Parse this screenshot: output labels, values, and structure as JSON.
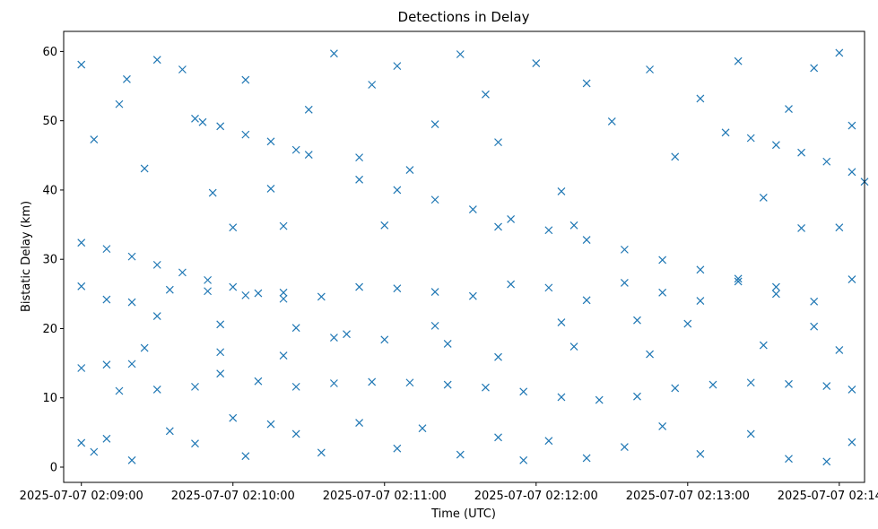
{
  "chart_data": {
    "type": "scatter",
    "title": "Detections in Delay",
    "xlabel": "Time (UTC)",
    "ylabel": "Bistatic Delay (km)",
    "marker": "x",
    "color": "#1f77b4",
    "grid": false,
    "x_axis": {
      "type": "datetime",
      "range": [
        "2025-07-07 02:08:53",
        "2025-07-07 02:14:10"
      ],
      "ticks": [
        "2025-07-07 02:09:00",
        "2025-07-07 02:10:00",
        "2025-07-07 02:11:00",
        "2025-07-07 02:12:00",
        "2025-07-07 02:13:00",
        "2025-07-07 02:14:00"
      ],
      "tick_labels": [
        "2025-07-07 02:09:00",
        "2025-07-07 02:10:00",
        "2025-07-07 02:11:00",
        "2025-07-07 02:12:00",
        "2025-07-07 02:13:00",
        "2025-07-07 02:14:00"
      ]
    },
    "y_axis": {
      "range": [
        -2.2,
        62.9
      ],
      "ticks": [
        0,
        10,
        20,
        30,
        40,
        50,
        60
      ],
      "tick_labels": [
        "0",
        "10",
        "20",
        "30",
        "40",
        "50",
        "60"
      ]
    },
    "series": [
      {
        "points": [
          [
            "2025-07-07 02:09:00",
            32.4
          ],
          [
            "2025-07-07 02:09:10",
            31.5
          ],
          [
            "2025-07-07 02:09:20",
            30.4
          ],
          [
            "2025-07-07 02:09:30",
            29.2
          ],
          [
            "2025-07-07 02:09:40",
            28.1
          ],
          [
            "2025-07-07 02:09:50",
            27.0
          ],
          [
            "2025-07-07 02:10:00",
            26.0
          ],
          [
            "2025-07-07 02:10:10",
            25.1
          ],
          [
            "2025-07-07 02:10:20",
            24.3
          ],
          [
            "2025-07-07 02:09:45",
            50.3
          ],
          [
            "2025-07-07 02:09:55",
            49.2
          ],
          [
            "2025-07-07 02:10:05",
            48.0
          ],
          [
            "2025-07-07 02:10:15",
            47.0
          ],
          [
            "2025-07-07 02:10:25",
            45.8
          ],
          [
            "2025-07-07 02:10:30",
            45.1
          ],
          [
            "2025-07-07 02:10:50",
            41.5
          ],
          [
            "2025-07-07 02:11:05",
            40.0
          ],
          [
            "2025-07-07 02:11:20",
            38.6
          ],
          [
            "2025-07-07 02:11:35",
            37.2
          ],
          [
            "2025-07-07 02:11:50",
            35.8
          ],
          [
            "2025-07-07 02:12:05",
            34.2
          ],
          [
            "2025-07-07 02:12:20",
            32.8
          ],
          [
            "2025-07-07 02:12:35",
            31.4
          ],
          [
            "2025-07-07 02:12:50",
            29.9
          ],
          [
            "2025-07-07 02:13:05",
            28.5
          ],
          [
            "2025-07-07 02:13:20",
            27.2
          ],
          [
            "2025-07-07 02:13:35",
            26.0
          ],
          [
            "2025-07-07 02:13:15",
            48.3
          ],
          [
            "2025-07-07 02:13:25",
            47.5
          ],
          [
            "2025-07-07 02:13:35",
            46.5
          ],
          [
            "2025-07-07 02:13:45",
            45.4
          ],
          [
            "2025-07-07 02:13:55",
            44.1
          ],
          [
            "2025-07-07 02:14:05",
            42.6
          ],
          [
            "2025-07-07 02:14:10",
            41.2
          ],
          [
            "2025-07-07 02:09:00",
            14.3
          ],
          [
            "2025-07-07 02:09:10",
            14.8
          ],
          [
            "2025-07-07 02:09:20",
            14.9
          ],
          [
            "2025-07-07 02:09:15",
            11.0
          ],
          [
            "2025-07-07 02:09:30",
            11.2
          ],
          [
            "2025-07-07 02:09:45",
            11.6
          ],
          [
            "2025-07-07 02:09:55",
            13.5
          ],
          [
            "2025-07-07 02:10:10",
            12.4
          ],
          [
            "2025-07-07 02:10:25",
            11.6
          ],
          [
            "2025-07-07 02:10:40",
            12.1
          ],
          [
            "2025-07-07 02:10:55",
            12.3
          ],
          [
            "2025-07-07 02:11:10",
            12.2
          ],
          [
            "2025-07-07 02:11:25",
            11.9
          ],
          [
            "2025-07-07 02:11:40",
            11.5
          ],
          [
            "2025-07-07 02:11:55",
            10.9
          ],
          [
            "2025-07-07 02:12:10",
            10.1
          ],
          [
            "2025-07-07 02:12:25",
            9.7
          ],
          [
            "2025-07-07 02:12:40",
            10.2
          ],
          [
            "2025-07-07 02:12:55",
            11.4
          ],
          [
            "2025-07-07 02:13:10",
            11.9
          ],
          [
            "2025-07-07 02:13:25",
            12.2
          ],
          [
            "2025-07-07 02:13:40",
            12.0
          ],
          [
            "2025-07-07 02:13:55",
            11.7
          ],
          [
            "2025-07-07 02:14:05",
            11.2
          ],
          [
            "2025-07-07 02:09:00",
            26.1
          ],
          [
            "2025-07-07 02:09:10",
            24.2
          ],
          [
            "2025-07-07 02:09:20",
            23.8
          ],
          [
            "2025-07-07 02:09:35",
            25.6
          ],
          [
            "2025-07-07 02:09:50",
            25.4
          ],
          [
            "2025-07-07 02:10:05",
            24.8
          ],
          [
            "2025-07-07 02:10:20",
            25.2
          ],
          [
            "2025-07-07 02:10:35",
            24.6
          ],
          [
            "2025-07-07 02:10:50",
            26.0
          ],
          [
            "2025-07-07 02:11:05",
            25.8
          ],
          [
            "2025-07-07 02:11:20",
            25.3
          ],
          [
            "2025-07-07 02:11:35",
            24.7
          ],
          [
            "2025-07-07 02:11:50",
            26.4
          ],
          [
            "2025-07-07 02:12:05",
            25.9
          ],
          [
            "2025-07-07 02:12:20",
            24.1
          ],
          [
            "2025-07-07 02:12:35",
            26.6
          ],
          [
            "2025-07-07 02:12:50",
            25.2
          ],
          [
            "2025-07-07 02:13:05",
            24.0
          ],
          [
            "2025-07-07 02:13:20",
            26.8
          ],
          [
            "2025-07-07 02:13:35",
            25.0
          ],
          [
            "2025-07-07 02:13:50",
            23.9
          ],
          [
            "2025-07-07 02:14:05",
            27.1
          ],
          [
            "2025-07-07 02:09:30",
            21.8
          ],
          [
            "2025-07-07 02:09:55",
            20.6
          ],
          [
            "2025-07-07 02:10:25",
            20.1
          ],
          [
            "2025-07-07 02:10:40",
            18.7
          ],
          [
            "2025-07-07 02:11:00",
            18.4
          ],
          [
            "2025-07-07 02:11:20",
            20.4
          ],
          [
            "2025-07-07 02:12:10",
            20.9
          ],
          [
            "2025-07-07 02:12:40",
            21.2
          ],
          [
            "2025-07-07 02:13:00",
            20.7
          ],
          [
            "2025-07-07 02:13:50",
            20.3
          ],
          [
            "2025-07-07 02:10:00",
            34.6
          ],
          [
            "2025-07-07 02:10:20",
            34.8
          ],
          [
            "2025-07-07 02:11:00",
            34.9
          ],
          [
            "2025-07-07 02:11:45",
            34.7
          ],
          [
            "2025-07-07 02:12:15",
            34.9
          ],
          [
            "2025-07-07 02:13:45",
            34.5
          ],
          [
            "2025-07-07 02:14:00",
            34.6
          ],
          [
            "2025-07-07 02:09:00",
            58.1
          ],
          [
            "2025-07-07 02:09:05",
            47.3
          ],
          [
            "2025-07-07 02:09:15",
            52.4
          ],
          [
            "2025-07-07 02:09:18",
            56.0
          ],
          [
            "2025-07-07 02:09:25",
            43.1
          ],
          [
            "2025-07-07 02:09:30",
            58.8
          ],
          [
            "2025-07-07 02:09:40",
            57.4
          ],
          [
            "2025-07-07 02:09:48",
            49.8
          ],
          [
            "2025-07-07 02:09:52",
            39.6
          ],
          [
            "2025-07-07 02:10:05",
            55.9
          ],
          [
            "2025-07-07 02:10:15",
            40.2
          ],
          [
            "2025-07-07 02:10:30",
            51.6
          ],
          [
            "2025-07-07 02:10:40",
            59.7
          ],
          [
            "2025-07-07 02:10:50",
            44.7
          ],
          [
            "2025-07-07 02:10:55",
            55.2
          ],
          [
            "2025-07-07 02:11:05",
            57.9
          ],
          [
            "2025-07-07 02:11:10",
            42.9
          ],
          [
            "2025-07-07 02:11:20",
            49.5
          ],
          [
            "2025-07-07 02:11:30",
            59.6
          ],
          [
            "2025-07-07 02:11:40",
            53.8
          ],
          [
            "2025-07-07 02:11:45",
            46.9
          ],
          [
            "2025-07-07 02:12:00",
            58.3
          ],
          [
            "2025-07-07 02:12:10",
            39.8
          ],
          [
            "2025-07-07 02:12:20",
            55.4
          ],
          [
            "2025-07-07 02:12:30",
            49.9
          ],
          [
            "2025-07-07 02:12:45",
            57.4
          ],
          [
            "2025-07-07 02:12:55",
            44.8
          ],
          [
            "2025-07-07 02:13:05",
            53.2
          ],
          [
            "2025-07-07 02:13:20",
            58.6
          ],
          [
            "2025-07-07 02:13:30",
            38.9
          ],
          [
            "2025-07-07 02:13:40",
            51.7
          ],
          [
            "2025-07-07 02:13:50",
            57.6
          ],
          [
            "2025-07-07 02:14:00",
            59.8
          ],
          [
            "2025-07-07 02:14:05",
            49.3
          ],
          [
            "2025-07-07 02:09:00",
            3.5
          ],
          [
            "2025-07-07 02:09:05",
            2.2
          ],
          [
            "2025-07-07 02:09:10",
            4.1
          ],
          [
            "2025-07-07 02:09:20",
            1.0
          ],
          [
            "2025-07-07 02:09:35",
            5.2
          ],
          [
            "2025-07-07 02:09:45",
            3.4
          ],
          [
            "2025-07-07 02:10:00",
            7.1
          ],
          [
            "2025-07-07 02:10:05",
            1.6
          ],
          [
            "2025-07-07 02:10:15",
            6.2
          ],
          [
            "2025-07-07 02:10:25",
            4.8
          ],
          [
            "2025-07-07 02:10:35",
            2.1
          ],
          [
            "2025-07-07 02:10:50",
            6.4
          ],
          [
            "2025-07-07 02:11:05",
            2.7
          ],
          [
            "2025-07-07 02:11:15",
            5.6
          ],
          [
            "2025-07-07 02:11:30",
            1.8
          ],
          [
            "2025-07-07 02:11:45",
            4.3
          ],
          [
            "2025-07-07 02:11:55",
            1.0
          ],
          [
            "2025-07-07 02:12:05",
            3.8
          ],
          [
            "2025-07-07 02:12:20",
            1.3
          ],
          [
            "2025-07-07 02:12:35",
            2.9
          ],
          [
            "2025-07-07 02:12:50",
            5.9
          ],
          [
            "2025-07-07 02:13:05",
            1.9
          ],
          [
            "2025-07-07 02:13:25",
            4.8
          ],
          [
            "2025-07-07 02:13:40",
            1.2
          ],
          [
            "2025-07-07 02:13:55",
            0.8
          ],
          [
            "2025-07-07 02:14:05",
            3.6
          ],
          [
            "2025-07-07 02:09:25",
            17.2
          ],
          [
            "2025-07-07 02:09:55",
            16.6
          ],
          [
            "2025-07-07 02:10:20",
            16.1
          ],
          [
            "2025-07-07 02:10:45",
            19.2
          ],
          [
            "2025-07-07 02:11:25",
            17.8
          ],
          [
            "2025-07-07 02:11:45",
            15.9
          ],
          [
            "2025-07-07 02:12:15",
            17.4
          ],
          [
            "2025-07-07 02:12:45",
            16.3
          ],
          [
            "2025-07-07 02:13:30",
            17.6
          ],
          [
            "2025-07-07 02:14:00",
            16.9
          ]
        ]
      }
    ]
  }
}
